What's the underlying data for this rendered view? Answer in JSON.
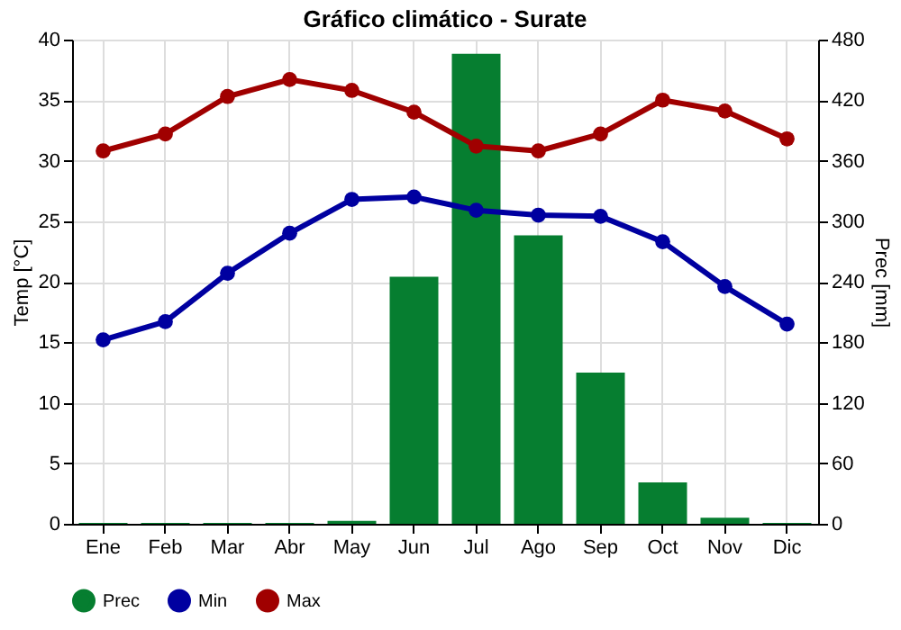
{
  "chart_data": {
    "type": "bar",
    "title": "Gráfico climático - Surate",
    "ylabel": "Temp [°C]",
    "y2label": "Prec [mm]",
    "categories": [
      "Ene",
      "Feb",
      "Mar",
      "Abr",
      "May",
      "Jun",
      "Jul",
      "Ago",
      "Sep",
      "Oct",
      "Nov",
      "Dic"
    ],
    "series": [
      {
        "name": "Prec",
        "axis": "y2",
        "color": "#067e30",
        "values": [
          1,
          1,
          1,
          1,
          3,
          245,
          466,
          286,
          150,
          41,
          6,
          1
        ]
      },
      {
        "name": "Min",
        "type": "line",
        "color": "#0000a0",
        "values": [
          15.2,
          16.7,
          20.7,
          24,
          26.8,
          27,
          25.9,
          25.5,
          25.4,
          23.3,
          19.6,
          16.5
        ]
      },
      {
        "name": "Max",
        "type": "line",
        "color": "#a00000",
        "values": [
          30.8,
          32.2,
          35.3,
          36.7,
          35.8,
          34,
          31.2,
          30.8,
          32.2,
          35,
          34.1,
          31.8
        ]
      }
    ],
    "ylim": [
      0,
      40
    ],
    "yticks": [
      0,
      5,
      10,
      15,
      20,
      25,
      30,
      35,
      40
    ],
    "y2lim": [
      0,
      480
    ],
    "y2ticks": [
      0,
      60,
      120,
      180,
      240,
      300,
      360,
      420,
      480
    ],
    "grid": true,
    "legend": "bottom",
    "marker": "circle",
    "line_style": "solid"
  }
}
